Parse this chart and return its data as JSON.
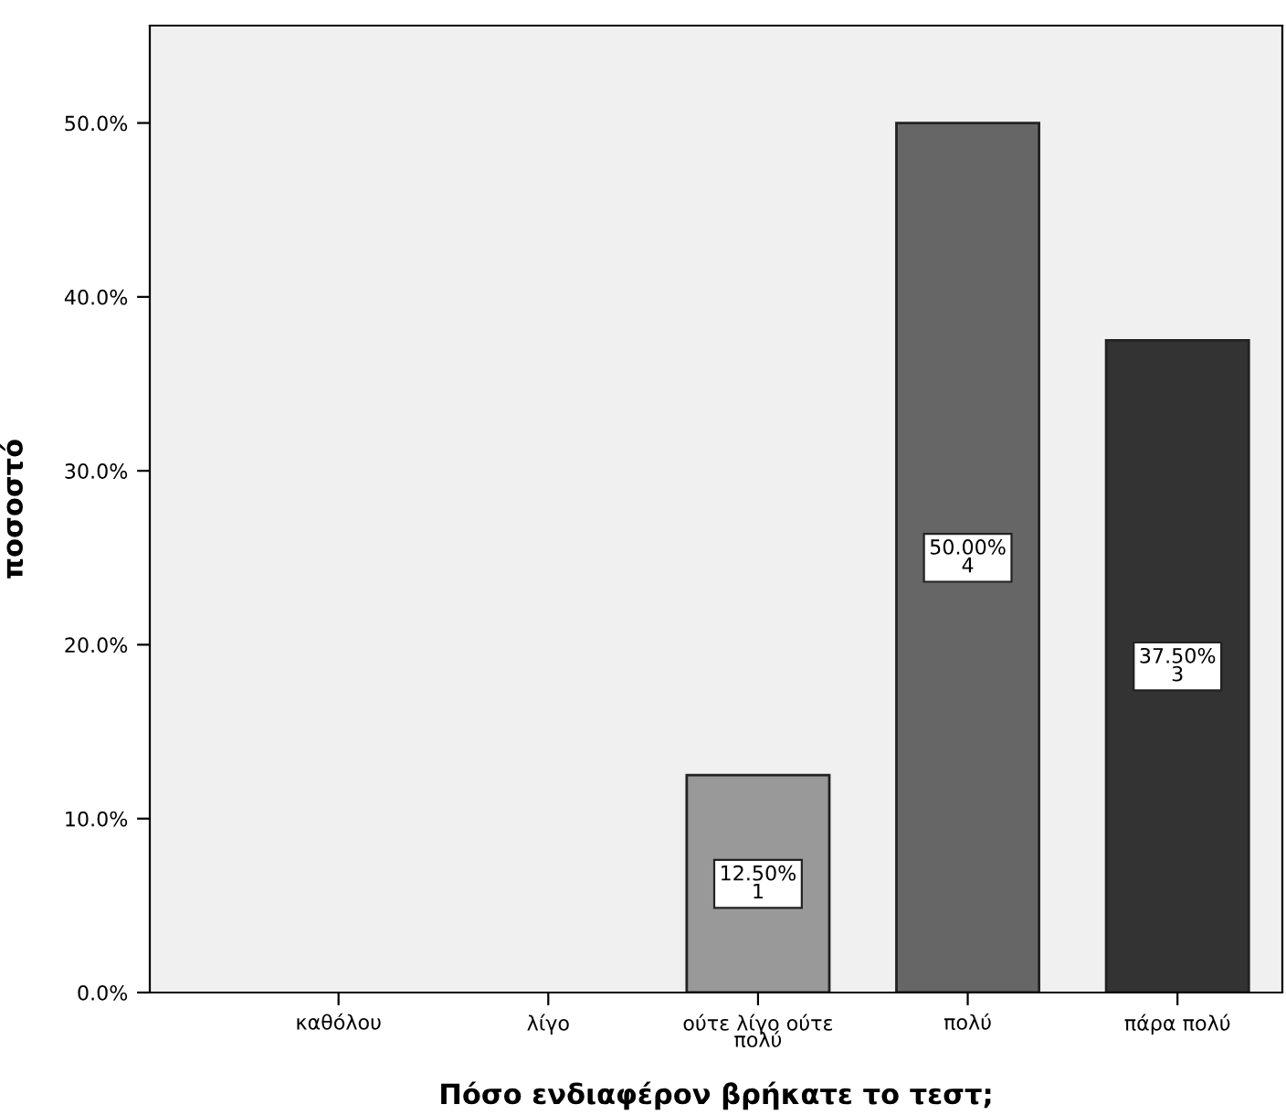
{
  "chart_data": {
    "type": "bar",
    "xlabel": "Πόσο ενδιαφέρον βρήκατε το τεστ;",
    "ylabel": "ποσοστό",
    "categories": [
      "καθόλου",
      "λίγο",
      "ούτε λίγο ούτε\nπολύ",
      "πολύ",
      "πάρα πολύ"
    ],
    "values": [
      0,
      0,
      12.5,
      50,
      37.5
    ],
    "colors": [
      null,
      null,
      "#999999",
      "#666666",
      "#333333"
    ],
    "value_labels": [
      null,
      null,
      "12.50%\n1",
      "50.00%\n4",
      "37.50%\n3"
    ],
    "ylim": [
      0,
      55.6
    ],
    "yticks": [
      {
        "value": 0,
        "label": "0.0%"
      },
      {
        "value": 10,
        "label": "10.0%"
      },
      {
        "value": 20,
        "label": "20.0%"
      },
      {
        "value": 30,
        "label": "30.0%"
      },
      {
        "value": 40,
        "label": "40.0%"
      },
      {
        "value": 50,
        "label": "50.0%"
      }
    ],
    "grid": false,
    "legend": false
  }
}
